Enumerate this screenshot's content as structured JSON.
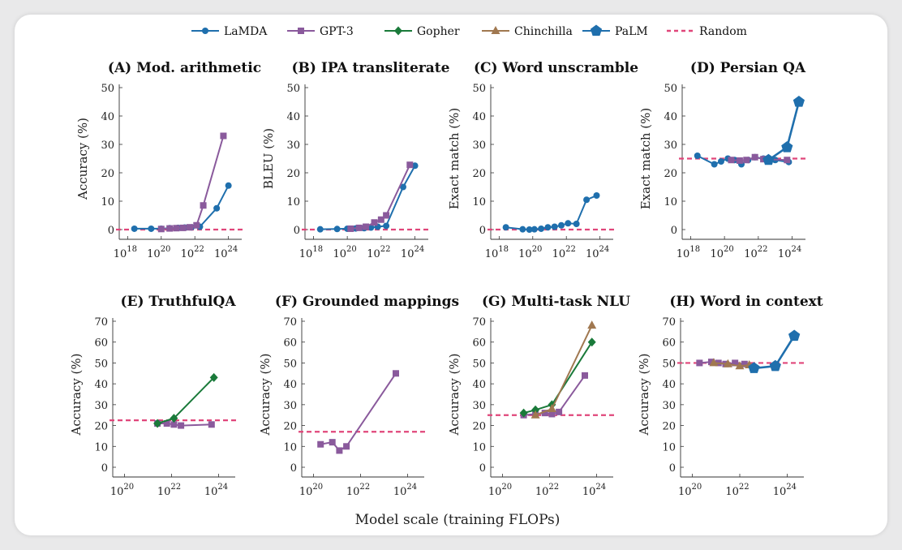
{
  "figure": {
    "xlabel": "Model scale (training FLOPs)"
  },
  "legend": [
    {
      "name": "LaMDA",
      "color": "#1f6fad",
      "marker": "circle"
    },
    {
      "name": "GPT-3",
      "color": "#8a5a9c",
      "marker": "square"
    },
    {
      "name": "Gopher",
      "color": "#1a7a3a",
      "marker": "diamond"
    },
    {
      "name": "Chinchilla",
      "color": "#a07850",
      "marker": "triangle"
    },
    {
      "name": "PaLM",
      "color": "#1f6fad",
      "marker": "pentagon"
    },
    {
      "name": "Random",
      "color": "#e0467a",
      "marker": "dashed"
    }
  ],
  "chart_data": [
    {
      "type": "line",
      "title": "(A) Mod. arithmetic",
      "ylabel": "Accuracy (%)",
      "xscale": "log",
      "xlim_exp": [
        17.5,
        24.5
      ],
      "xticks_exp": [
        18,
        20,
        22,
        24
      ],
      "ylim": [
        0,
        50
      ],
      "yticks": [
        0,
        10,
        20,
        30,
        40,
        50
      ],
      "random": 0,
      "series": [
        {
          "name": "LaMDA",
          "points": [
            [
              18.4,
              0.3
            ],
            [
              19.4,
              0.3
            ],
            [
              20,
              0.3
            ],
            [
              20.5,
              0.5
            ],
            [
              21,
              0.6
            ],
            [
              21.4,
              0.7
            ],
            [
              21.8,
              0.8
            ],
            [
              22.3,
              1
            ],
            [
              23.3,
              7.5
            ],
            [
              24,
              15.5
            ]
          ]
        },
        {
          "name": "GPT-3",
          "points": [
            [
              20,
              0.2
            ],
            [
              20.5,
              0.4
            ],
            [
              20.9,
              0.5
            ],
            [
              21.3,
              0.6
            ],
            [
              21.7,
              0.8
            ],
            [
              22.1,
              1.5
            ],
            [
              22.5,
              8.5
            ],
            [
              23.7,
              33
            ]
          ]
        }
      ]
    },
    {
      "type": "line",
      "title": "(B) IPA transliterate",
      "ylabel": "BLEU (%)",
      "xscale": "log",
      "xlim_exp": [
        17.5,
        24.5
      ],
      "xticks_exp": [
        18,
        20,
        22,
        24
      ],
      "ylim": [
        0,
        50
      ],
      "yticks": [
        0,
        10,
        20,
        30,
        40,
        50
      ],
      "random": 0,
      "series": [
        {
          "name": "LaMDA",
          "points": [
            [
              18.4,
              0.1
            ],
            [
              19.4,
              0.2
            ],
            [
              20,
              0.3
            ],
            [
              20.5,
              0.4
            ],
            [
              21,
              0.5
            ],
            [
              21.4,
              0.7
            ],
            [
              21.8,
              1
            ],
            [
              22.3,
              1.3
            ],
            [
              23.3,
              15
            ],
            [
              24,
              22.5
            ]
          ]
        },
        {
          "name": "GPT-3",
          "points": [
            [
              20.2,
              0.3
            ],
            [
              20.7,
              0.6
            ],
            [
              21.1,
              1
            ],
            [
              21.6,
              2.5
            ],
            [
              22,
              3.5
            ],
            [
              22.3,
              5
            ],
            [
              23.7,
              22.8
            ]
          ]
        }
      ]
    },
    {
      "type": "line",
      "title": "(C) Word unscramble",
      "ylabel": "Exact match (%)",
      "xscale": "log",
      "xlim_exp": [
        17.5,
        24.5
      ],
      "xticks_exp": [
        18,
        20,
        22,
        24
      ],
      "ylim": [
        0,
        50
      ],
      "yticks": [
        0,
        10,
        20,
        30,
        40,
        50
      ],
      "random": 0,
      "series": [
        {
          "name": "LaMDA",
          "points": [
            [
              18.4,
              0.8
            ],
            [
              19.4,
              0.1
            ],
            [
              19.8,
              0
            ],
            [
              20.1,
              0.1
            ],
            [
              20.5,
              0.3
            ],
            [
              20.9,
              0.8
            ],
            [
              21.3,
              1
            ],
            [
              21.7,
              1.5
            ],
            [
              22.1,
              2.2
            ],
            [
              22.6,
              2
            ],
            [
              23.2,
              10.5
            ],
            [
              23.8,
              12
            ]
          ]
        }
      ]
    },
    {
      "type": "line",
      "title": "(D) Persian QA",
      "ylabel": "Exact match (%)",
      "xscale": "log",
      "xlim_exp": [
        17.5,
        24.5
      ],
      "xticks_exp": [
        18,
        20,
        22,
        24
      ],
      "ylim": [
        0,
        50
      ],
      "yticks": [
        0,
        10,
        20,
        30,
        40,
        50
      ],
      "random": 25,
      "series": [
        {
          "name": "LaMDA",
          "points": [
            [
              18.4,
              26
            ],
            [
              19.4,
              23
            ],
            [
              19.8,
              24
            ],
            [
              20.2,
              25
            ],
            [
              20.6,
              24.5
            ],
            [
              21,
              23
            ],
            [
              21.4,
              24.5
            ],
            [
              21.8,
              25.5
            ],
            [
              22.3,
              25
            ],
            [
              23,
              24.5
            ],
            [
              23.8,
              23.8
            ]
          ]
        },
        {
          "name": "GPT-3",
          "points": [
            [
              20.4,
              24.5
            ],
            [
              20.9,
              24.3
            ],
            [
              21.3,
              24.5
            ],
            [
              21.8,
              25.5
            ],
            [
              22.3,
              24.8
            ],
            [
              23.7,
              24.5
            ]
          ]
        },
        {
          "name": "PaLM",
          "points": [
            [
              22.6,
              24.5
            ],
            [
              23.7,
              29
            ],
            [
              24.4,
              45
            ]
          ]
        }
      ]
    },
    {
      "type": "line",
      "title": "(E) TruthfulQA",
      "ylabel": "Accuracy (%)",
      "xscale": "log",
      "xlim_exp": [
        19.5,
        24.5
      ],
      "xticks_exp": [
        20,
        22,
        24
      ],
      "ylim": [
        0,
        70
      ],
      "yticks": [
        0,
        10,
        20,
        30,
        40,
        50,
        60,
        70
      ],
      "random": 22.5,
      "series": [
        {
          "name": "GPT-3",
          "points": [
            [
              21.4,
              21
            ],
            [
              21.8,
              21
            ],
            [
              22.1,
              20.5
            ],
            [
              22.4,
              20
            ],
            [
              23.7,
              20.5
            ]
          ]
        },
        {
          "name": "Gopher",
          "points": [
            [
              21.4,
              21
            ],
            [
              22.1,
              23.5
            ],
            [
              23.8,
              43
            ]
          ]
        }
      ]
    },
    {
      "type": "line",
      "title": "(F) Grounded mappings",
      "ylabel": "Accuracy (%)",
      "xscale": "log",
      "xlim_exp": [
        19.5,
        24.5
      ],
      "xticks_exp": [
        20,
        22,
        24
      ],
      "ylim": [
        0,
        70
      ],
      "yticks": [
        0,
        10,
        20,
        30,
        40,
        50,
        60,
        70
      ],
      "random": 17,
      "series": [
        {
          "name": "GPT-3",
          "points": [
            [
              20.3,
              11
            ],
            [
              20.8,
              12
            ],
            [
              21.1,
              8
            ],
            [
              21.4,
              10
            ],
            [
              23.5,
              45
            ]
          ]
        }
      ]
    },
    {
      "type": "line",
      "title": "(G) Multi-task NLU",
      "ylabel": "Accuracy (%)",
      "xscale": "log",
      "xlim_exp": [
        19.5,
        24.5
      ],
      "xticks_exp": [
        20,
        22,
        24
      ],
      "ylim": [
        0,
        70
      ],
      "yticks": [
        0,
        10,
        20,
        30,
        40,
        50,
        60,
        70
      ],
      "random": 25,
      "series": [
        {
          "name": "GPT-3",
          "points": [
            [
              20.9,
              25
            ],
            [
              21.4,
              25.5
            ],
            [
              21.8,
              26
            ],
            [
              22.1,
              25.5
            ],
            [
              22.4,
              26.5
            ],
            [
              23.5,
              44
            ]
          ]
        },
        {
          "name": "Gopher",
          "points": [
            [
              20.9,
              26
            ],
            [
              21.4,
              27.5
            ],
            [
              22.1,
              30
            ],
            [
              23.8,
              60
            ]
          ]
        },
        {
          "name": "Chinchilla",
          "points": [
            [
              21.4,
              25
            ],
            [
              22.1,
              28
            ],
            [
              23.8,
              68
            ]
          ]
        }
      ]
    },
    {
      "type": "line",
      "title": "(H) Word in context",
      "ylabel": "Accuracy (%)",
      "xscale": "log",
      "xlim_exp": [
        19.5,
        24.5
      ],
      "xticks_exp": [
        20,
        22,
        24
      ],
      "ylim": [
        0,
        70
      ],
      "yticks": [
        0,
        10,
        20,
        30,
        40,
        50,
        60,
        70
      ],
      "random": 50,
      "series": [
        {
          "name": "GPT-3",
          "points": [
            [
              20.3,
              50
            ],
            [
              20.8,
              50.5
            ],
            [
              21.1,
              50
            ],
            [
              21.4,
              49.5
            ],
            [
              21.8,
              50
            ],
            [
              22.2,
              49.5
            ]
          ]
        },
        {
          "name": "Chinchilla",
          "points": [
            [
              20.9,
              50
            ],
            [
              21.5,
              49.5
            ],
            [
              22,
              48.5
            ],
            [
              22.4,
              49
            ]
          ]
        },
        {
          "name": "PaLM",
          "points": [
            [
              22.6,
              47.5
            ],
            [
              23.5,
              48.5
            ],
            [
              24.3,
              63
            ]
          ]
        }
      ]
    }
  ]
}
